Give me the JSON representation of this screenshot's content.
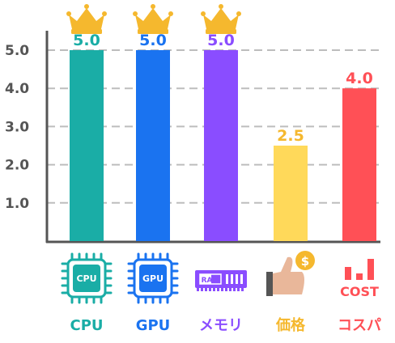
{
  "chart_data": {
    "type": "bar",
    "categories": [
      "CPU",
      "GPU",
      "メモリ",
      "価格",
      "コスパ"
    ],
    "values": [
      5.0,
      5.0,
      5.0,
      2.5,
      4.0
    ],
    "value_labels": [
      "5.0",
      "5.0",
      "5.0",
      "2.5",
      "4.0"
    ],
    "colors": [
      "#1aada6",
      "#1a73f0",
      "#8a4dff",
      "#ffd95a",
      "#ff5056"
    ],
    "label_colors": [
      "#1aada6",
      "#1a73f0",
      "#8a4dff",
      "#f5b82e",
      "#ff5056"
    ],
    "yticks": [
      "1.0",
      "2.0",
      "3.0",
      "4.0",
      "5.0"
    ],
    "ylim": [
      0,
      5
    ],
    "grid": true,
    "crowned": [
      true,
      true,
      true,
      false,
      false
    ],
    "icons": [
      "cpu-chip-icon",
      "gpu-chip-icon",
      "ram-module-icon",
      "thumbs-up-coin-icon",
      "cost-bars-icon"
    ],
    "icon_texts": [
      "CPU",
      "GPU",
      "RAM",
      "$",
      "COST"
    ],
    "crown_color": "#f5b82e",
    "title": "",
    "xlabel": "",
    "ylabel": ""
  }
}
